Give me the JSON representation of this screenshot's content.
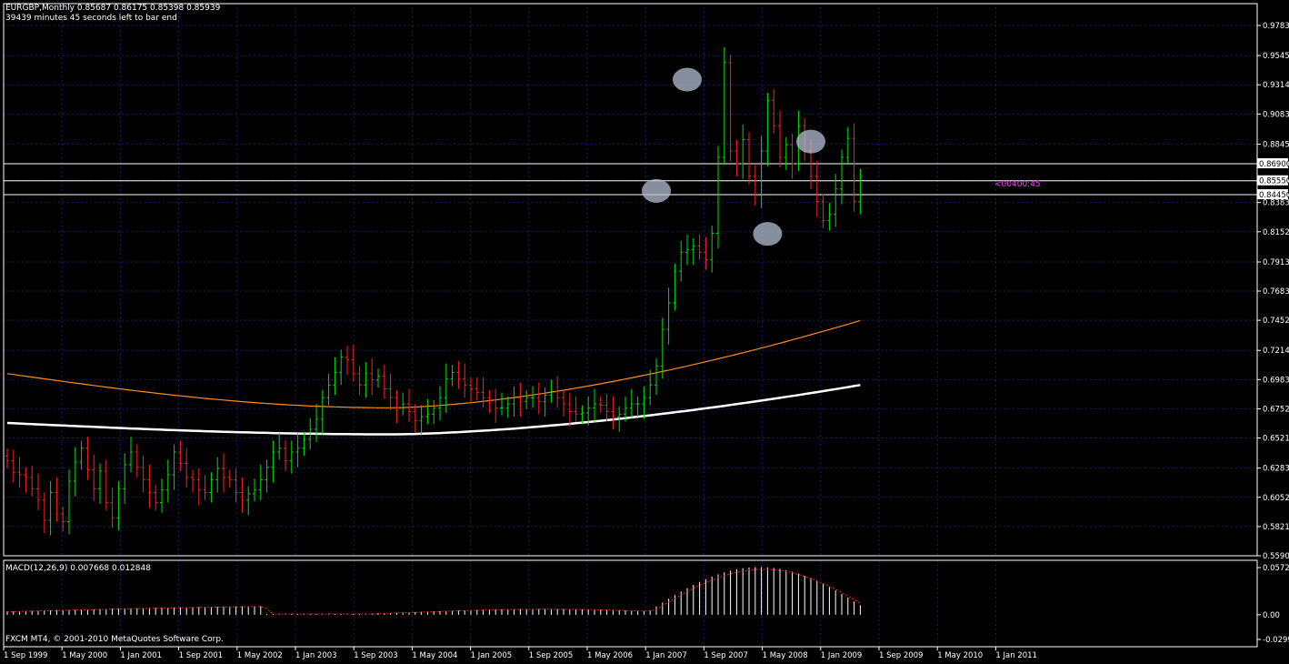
{
  "header": {
    "symbol_line": "EURGBP,Monthly  0.85687 0.86175 0.85398 0.85939",
    "timer_line": "39439 minutes 45 seconds left to bar end"
  },
  "indicator": {
    "label": "MACD(12,26,9) 0.007668 0.012848",
    "scale_labels": [
      "0.05724",
      "0.00",
      "-0.02997"
    ]
  },
  "copyright": "FXCM MT4, © 2001-2010 MetaQuotes Software Corp.",
  "countdown_label": "<00400:45",
  "colors": {
    "background": "#000000",
    "grid": "#1c1c6e",
    "bull_bar": "#00e000",
    "bear_bar": "#ff2020",
    "ma_fast": "#ff8c1a",
    "ma_slow": "#ffffff",
    "macd_histogram": "#ffffff",
    "macd_signal": "#ff2020",
    "countdown": "#ff40ff",
    "highlight_marker": "#b4bed2"
  },
  "icons": {
    "highlight_marker": "ellipse-marker"
  },
  "chart_data": {
    "type": "ohlc",
    "timeframe": "Monthly",
    "symbol": "EURGBP",
    "price_axis_labels": [
      "0.97830",
      "0.95450",
      "0.93140",
      "0.90830",
      "0.88450",
      "0.86900",
      "0.85550",
      "0.84450",
      "0.83830",
      "0.81520",
      "0.79130",
      "0.76830",
      "0.74520",
      "0.72140",
      "0.69830",
      "0.67520",
      "0.65210",
      "0.62830",
      "0.60520",
      "0.58210",
      "0.55900"
    ],
    "time_axis_labels": [
      "1 Sep 1999",
      "1 May 2000",
      "1 Jan 2001",
      "1 Sep 2001",
      "1 May 2002",
      "1 Jan 2003",
      "1 Sep 2003",
      "1 May 2004",
      "1 Jan 2005",
      "1 Sep 2005",
      "1 May 2006",
      "1 Jan 2007",
      "1 Sep 2007",
      "1 May 2008",
      "1 Jan 2009",
      "1 Sep 2009",
      "1 May 2010",
      "1 Jan 2011"
    ],
    "horizontal_lines": [
      0.869,
      0.8555,
      0.8445
    ],
    "highlight_markers": [
      {
        "bar": 110,
        "price": 0.9355
      },
      {
        "bar": 130,
        "price": 0.8865
      },
      {
        "bar": 105,
        "price": 0.8475
      },
      {
        "bar": 123,
        "price": 0.8135
      }
    ],
    "closes": [
      0.634,
      0.625,
      0.623,
      0.621,
      0.612,
      0.603,
      0.587,
      0.609,
      0.592,
      0.586,
      0.618,
      0.633,
      0.644,
      0.627,
      0.612,
      0.626,
      0.601,
      0.589,
      0.612,
      0.631,
      0.641,
      0.629,
      0.619,
      0.609,
      0.601,
      0.611,
      0.623,
      0.641,
      0.632,
      0.621,
      0.619,
      0.611,
      0.609,
      0.619,
      0.628,
      0.621,
      0.619,
      0.609,
      0.603,
      0.608,
      0.611,
      0.619,
      0.629,
      0.641,
      0.644,
      0.634,
      0.641,
      0.644,
      0.651,
      0.659,
      0.667,
      0.684,
      0.694,
      0.704,
      0.716,
      0.714,
      0.703,
      0.694,
      0.703,
      0.698,
      0.701,
      0.691,
      0.684,
      0.676,
      0.679,
      0.673,
      0.666,
      0.669,
      0.671,
      0.676,
      0.684,
      0.699,
      0.704,
      0.699,
      0.694,
      0.691,
      0.688,
      0.684,
      0.682,
      0.676,
      0.676,
      0.679,
      0.684,
      0.681,
      0.684,
      0.684,
      0.681,
      0.686,
      0.689,
      0.684,
      0.679,
      0.673,
      0.671,
      0.672,
      0.676,
      0.679,
      0.678,
      0.673,
      0.669,
      0.671,
      0.676,
      0.679,
      0.679,
      0.684,
      0.694,
      0.709,
      0.738,
      0.759,
      0.784,
      0.799,
      0.801,
      0.804,
      0.799,
      0.793,
      0.814,
      0.874,
      0.949,
      0.879,
      0.869,
      0.888,
      0.859,
      0.844,
      0.879,
      0.919,
      0.899,
      0.874,
      0.884,
      0.869,
      0.899,
      0.879,
      0.859,
      0.839,
      0.824,
      0.829,
      0.849,
      0.874,
      0.889,
      0.839,
      0.859
    ],
    "ma_fast": {
      "start": 0.703,
      "end": 0.745
    },
    "ma_slow": {
      "start": 0.664,
      "end": 0.694
    },
    "macd": {
      "histogram_max": 0.05724,
      "histogram_min": -0.02997
    }
  }
}
